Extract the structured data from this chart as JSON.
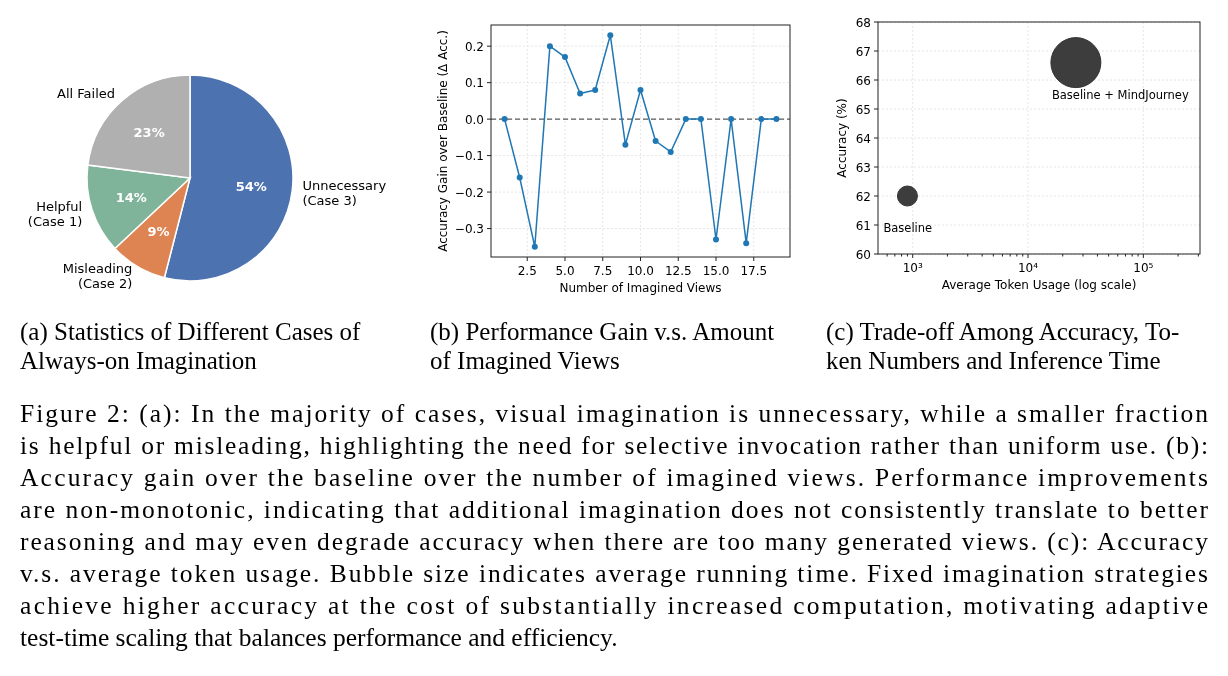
{
  "chart_data": [
    {
      "type": "pie",
      "title": "(a) Statistics of Different Cases of\nAlways-on Imagination",
      "categories": [
        "Unnecessary\n(Case 3)",
        "Misleading\n(Case 2)",
        "Helpful\n(Case 1)",
        "All Failed"
      ],
      "values": [
        54,
        9,
        14,
        23
      ],
      "colors": [
        "#4c72b0",
        "#dd8452",
        "#7fb39a",
        "#b0b0b0"
      ],
      "value_labels": [
        "54%",
        "9%",
        "14%",
        "23%"
      ]
    },
    {
      "type": "line",
      "title": "(b) Performance Gain v.s. Amount\nof Imagined Views",
      "xlabel": "Number of Imagined Views",
      "ylabel": "Accuracy Gain over Baseline (Δ Acc.)",
      "x": [
        1,
        2,
        3,
        4,
        5,
        6,
        7,
        8,
        9,
        10,
        11,
        12,
        13,
        14,
        15,
        16,
        17,
        18,
        19
      ],
      "series": [
        {
          "color": "#1f77b4",
          "values": [
            0,
            -0.16,
            -0.35,
            0.2,
            0.17,
            0.07,
            0.08,
            0.23,
            -0.07,
            0.08,
            -0.06,
            -0.09,
            0,
            0,
            -0.33,
            0,
            -0.34,
            0,
            0
          ]
        }
      ],
      "xlim": [
        0.1,
        19.9
      ],
      "xticks": [
        {
          "value": 2.5,
          "label": "2.5"
        },
        {
          "value": 5,
          "label": "5.0"
        },
        {
          "value": 7.5,
          "label": "7.5"
        },
        {
          "value": 10,
          "label": "10.0"
        },
        {
          "value": 12.5,
          "label": "12.5"
        },
        {
          "value": 15,
          "label": "15.0"
        },
        {
          "value": 17.5,
          "label": "17.5"
        }
      ],
      "ylim": [
        -0.378,
        0.258
      ],
      "yticks": [
        {
          "value": -0.3,
          "label": "−0.3"
        },
        {
          "value": -0.2,
          "label": "−0.2"
        },
        {
          "value": -0.1,
          "label": "−0.1"
        },
        {
          "value": 0,
          "label": "0.0"
        },
        {
          "value": 0.1,
          "label": "0.1"
        },
        {
          "value": 0.2,
          "label": "0.2"
        }
      ],
      "ref_lines": [
        {
          "axis": "y",
          "value": 0,
          "color": "#333333",
          "line_style": "dashed"
        }
      ],
      "grid": true,
      "marker": "circle"
    },
    {
      "type": "bubble",
      "title": "(c) Trade-off Among Accuracy, To-\nken Numbers and Inference Time",
      "xlabel": "Average Token Usage (log scale)",
      "ylabel": "Accuracy (%)",
      "log": "x",
      "x": [
        900,
        26000
      ],
      "series": [
        {
          "color": "#333333",
          "values": [
            62,
            66.6
          ],
          "sizes": [
            0.16,
            1
          ]
        }
      ],
      "annotations": [
        {
          "text": "Baseline",
          "x": 900,
          "y": 62
        },
        {
          "text": "Baseline + MindJourney",
          "x": 26000,
          "y": 66.6
        }
      ],
      "xlim": [
        500,
        310000
      ],
      "xticks": [
        {
          "value": 1000,
          "label": "10³"
        },
        {
          "value": 10000,
          "label": "10⁴"
        },
        {
          "value": 100000,
          "label": "10⁵"
        },
        {
          "value": 600,
          "label": null
        },
        {
          "value": 700,
          "label": null
        },
        {
          "value": 800,
          "label": null
        },
        {
          "value": 900,
          "label": null
        },
        {
          "value": 2000,
          "label": null
        },
        {
          "value": 3000,
          "label": null
        },
        {
          "value": 4000,
          "label": null
        },
        {
          "value": 5000,
          "label": null
        },
        {
          "value": 6000,
          "label": null
        },
        {
          "value": 7000,
          "label": null
        },
        {
          "value": 8000,
          "label": null
        },
        {
          "value": 9000,
          "label": null
        },
        {
          "value": 20000,
          "label": null
        },
        {
          "value": 30000,
          "label": null
        },
        {
          "value": 40000,
          "label": null
        },
        {
          "value": 50000,
          "label": null
        },
        {
          "value": 60000,
          "label": null
        },
        {
          "value": 70000,
          "label": null
        },
        {
          "value": 80000,
          "label": null
        },
        {
          "value": 90000,
          "label": null
        },
        {
          "value": 200000,
          "label": null
        },
        {
          "value": 300000,
          "label": null
        }
      ],
      "ylim": [
        60,
        68
      ],
      "yticks": [
        60,
        61,
        62,
        63,
        64,
        65,
        66,
        67,
        68
      ],
      "grid": true
    },
    {
      "type": "other",
      "annotations": [
        "Figure 2: (a): In the majority of cases, visual imagination is unnecessary, while a smaller fraction",
        "is helpful or misleading, highlighting the need for selective invocation rather than uniform use. (b):",
        "Accuracy gain over the baseline over the number of imagined views. Performance improvements",
        "are non-monotonic, indicating that additional imagination does not consistently translate to better",
        "reasoning and may even degrade accuracy when there are too many generated views. (c): Accuracy",
        "v.s. average token usage. Bubble size indicates average running time. Fixed imagination strategies",
        "achieve higher accuracy at the cost of substantially increased computation, motivating adaptive",
        "test-time scaling that balances performance and efficiency."
      ]
    }
  ]
}
